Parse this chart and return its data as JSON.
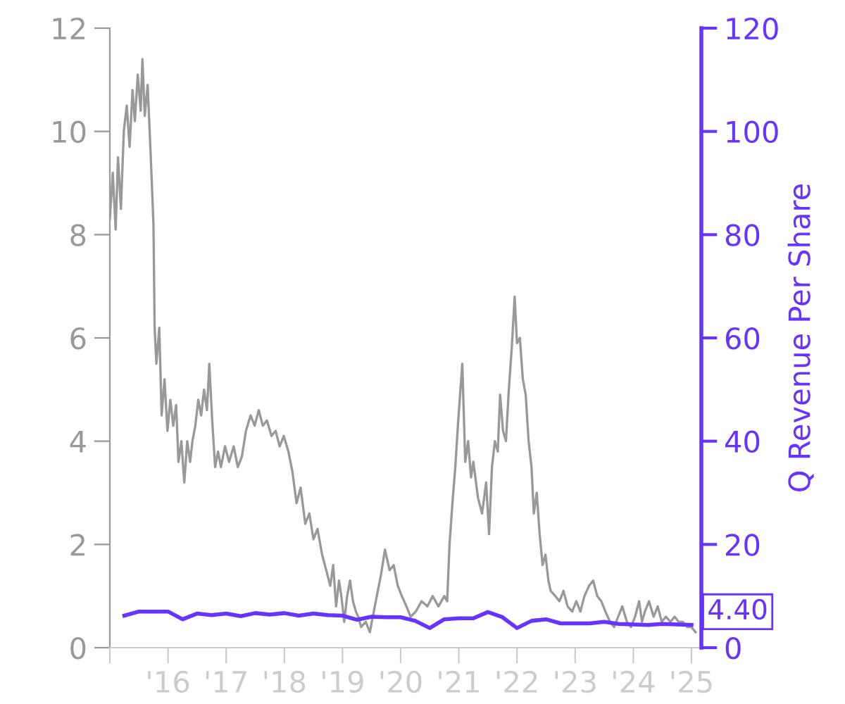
{
  "chart_data": {
    "type": "line",
    "y2label": "Q Revenue Per Share",
    "xlim": [
      2015.0,
      2025.17
    ],
    "xticks": [
      {
        "value": 2015,
        "label": null
      },
      {
        "value": 2016,
        "label": "'16"
      },
      {
        "value": 2017,
        "label": "'17"
      },
      {
        "value": 2018,
        "label": "'18"
      },
      {
        "value": 2019,
        "label": "'19"
      },
      {
        "value": 2020,
        "label": "'20"
      },
      {
        "value": 2021,
        "label": "'21"
      },
      {
        "value": 2022,
        "label": "'22"
      },
      {
        "value": 2023,
        "label": "'23"
      },
      {
        "value": 2024,
        "label": "'24"
      },
      {
        "value": 2025,
        "label": "'25"
      }
    ],
    "ylim": [
      0,
      12
    ],
    "yticks": [
      0,
      2,
      4,
      6,
      8,
      10,
      12
    ],
    "y2lim": [
      0,
      120
    ],
    "y2ticks": [
      0,
      20,
      40,
      60,
      80,
      100,
      120
    ],
    "grid": false,
    "legend": false,
    "marker": "none",
    "line_style": "solid",
    "series": [
      {
        "color": "#999999",
        "x": [
          2015.0,
          2015.05,
          2015.1,
          2015.14,
          2015.19,
          2015.24,
          2015.29,
          2015.34,
          2015.39,
          2015.43,
          2015.48,
          2015.53,
          2015.56,
          2015.6,
          2015.65,
          2015.7,
          2015.75,
          2015.77,
          2015.8,
          2015.85,
          2015.89,
          2015.94,
          2015.99,
          2016.04,
          2016.09,
          2016.14,
          2016.18,
          2016.23,
          2016.28,
          2016.33,
          2016.38,
          2016.42,
          2016.47,
          2016.52,
          2016.57,
          2016.62,
          2016.67,
          2016.71,
          2016.76,
          2016.81,
          2016.86,
          2016.91,
          2016.98,
          2017.05,
          2017.13,
          2017.2,
          2017.27,
          2017.34,
          2017.42,
          2017.49,
          2017.56,
          2017.63,
          2017.7,
          2017.78,
          2017.85,
          2017.92,
          2017.99,
          2018.07,
          2018.14,
          2018.21,
          2018.28,
          2018.36,
          2018.43,
          2018.5,
          2018.57,
          2018.65,
          2018.72,
          2018.79,
          2018.84,
          2018.89,
          2018.94,
          2018.98,
          2019.03,
          2019.08,
          2019.13,
          2019.18,
          2019.23,
          2019.27,
          2019.32,
          2019.4,
          2019.47,
          2019.59,
          2019.66,
          2019.73,
          2019.81,
          2019.88,
          2019.95,
          2020.02,
          2020.1,
          2020.17,
          2020.26,
          2020.36,
          2020.46,
          2020.55,
          2020.65,
          2020.75,
          2020.8,
          2020.84,
          2020.89,
          2020.94,
          2020.99,
          2021.06,
          2021.11,
          2021.16,
          2021.21,
          2021.25,
          2021.33,
          2021.4,
          2021.47,
          2021.52,
          2021.57,
          2021.62,
          2021.67,
          2021.71,
          2021.76,
          2021.81,
          2021.86,
          2021.91,
          2021.96,
          2022.0,
          2022.05,
          2022.1,
          2022.15,
          2022.2,
          2022.25,
          2022.29,
          2022.34,
          2022.39,
          2022.44,
          2022.49,
          2022.54,
          2022.58,
          2022.66,
          2022.73,
          2022.8,
          2022.87,
          2022.95,
          2023.02,
          2023.09,
          2023.16,
          2023.24,
          2023.31,
          2023.38,
          2023.45,
          2023.52,
          2023.6,
          2023.67,
          2023.74,
          2023.81,
          2023.89,
          2023.96,
          2024.03,
          2024.1,
          2024.15,
          2024.2,
          2024.27,
          2024.35,
          2024.42,
          2024.49,
          2024.56,
          2024.64,
          2024.71,
          2024.78,
          2024.85,
          2024.93,
          2025.0,
          2025.07
        ],
        "values": [
          8.3,
          9.2,
          8.1,
          9.5,
          8.5,
          10.0,
          10.5,
          9.7,
          10.8,
          10.2,
          11.1,
          10.4,
          11.4,
          10.3,
          10.9,
          9.6,
          8.2,
          6.2,
          5.5,
          6.2,
          4.5,
          5.2,
          4.2,
          4.8,
          4.3,
          4.7,
          3.6,
          4.0,
          3.2,
          4.0,
          3.6,
          4.0,
          4.3,
          4.8,
          4.5,
          5.0,
          4.6,
          5.5,
          4.4,
          3.5,
          3.8,
          3.5,
          3.9,
          3.6,
          3.9,
          3.5,
          3.7,
          4.2,
          4.5,
          4.3,
          4.6,
          4.3,
          4.4,
          4.1,
          4.2,
          3.9,
          4.1,
          3.8,
          3.4,
          2.8,
          3.1,
          2.4,
          2.6,
          2.1,
          2.3,
          1.8,
          1.5,
          1.2,
          1.6,
          0.8,
          1.3,
          1.0,
          0.5,
          1.0,
          1.3,
          0.9,
          0.7,
          0.6,
          0.4,
          0.5,
          0.3,
          1.0,
          1.4,
          1.9,
          1.5,
          1.6,
          1.2,
          1.0,
          0.8,
          0.6,
          0.7,
          0.9,
          0.8,
          1.0,
          0.8,
          1.0,
          0.9,
          2.0,
          2.8,
          3.5,
          4.4,
          5.5,
          3.6,
          4.0,
          3.3,
          3.6,
          2.9,
          2.6,
          3.2,
          2.2,
          3.5,
          4.0,
          3.8,
          4.9,
          4.2,
          4.0,
          5.0,
          5.8,
          6.8,
          5.9,
          6.0,
          5.2,
          4.9,
          4.0,
          3.5,
          2.6,
          3.0,
          2.2,
          1.6,
          1.8,
          1.3,
          1.1,
          1.0,
          0.9,
          1.1,
          0.8,
          0.7,
          0.9,
          0.7,
          1.0,
          1.2,
          1.3,
          1.0,
          0.9,
          0.7,
          0.5,
          0.4,
          0.6,
          0.8,
          0.5,
          0.4,
          0.6,
          0.9,
          0.5,
          0.7,
          0.9,
          0.6,
          0.8,
          0.5,
          0.6,
          0.5,
          0.6,
          0.5,
          0.5,
          0.4,
          0.4,
          0.3
        ]
      },
      {
        "color": "#6633ff",
        "axis": "y2",
        "x": [
          2015.25,
          2015.5,
          2015.75,
          2016.0,
          2016.25,
          2016.5,
          2016.75,
          2017.0,
          2017.25,
          2017.5,
          2017.75,
          2018.0,
          2018.25,
          2018.5,
          2018.75,
          2019.0,
          2019.25,
          2019.5,
          2019.75,
          2020.0,
          2020.25,
          2020.5,
          2020.75,
          2021.0,
          2021.25,
          2021.5,
          2021.75,
          2022.0,
          2022.25,
          2022.5,
          2022.75,
          2023.0,
          2023.25,
          2023.5,
          2023.75,
          2024.0,
          2024.25,
          2024.5,
          2024.75,
          2025.0
        ],
        "values": [
          6.2,
          7.0,
          7.0,
          7.0,
          5.5,
          6.6,
          6.3,
          6.6,
          6.1,
          6.7,
          6.4,
          6.7,
          6.2,
          6.6,
          6.3,
          6.2,
          5.4,
          6.0,
          5.9,
          5.9,
          5.2,
          3.8,
          5.5,
          5.7,
          5.7,
          6.9,
          5.9,
          3.8,
          5.2,
          5.5,
          4.7,
          4.7,
          4.7,
          5.0,
          4.6,
          4.5,
          4.4,
          4.6,
          4.5,
          4.4
        ],
        "value_labels": [
          null,
          null,
          null,
          null,
          null,
          null,
          null,
          null,
          null,
          null,
          null,
          null,
          null,
          null,
          null,
          null,
          null,
          null,
          null,
          null,
          null,
          null,
          null,
          null,
          null,
          null,
          null,
          null,
          null,
          null,
          null,
          null,
          null,
          null,
          null,
          null,
          null,
          null,
          null,
          "4.40"
        ]
      }
    ]
  }
}
